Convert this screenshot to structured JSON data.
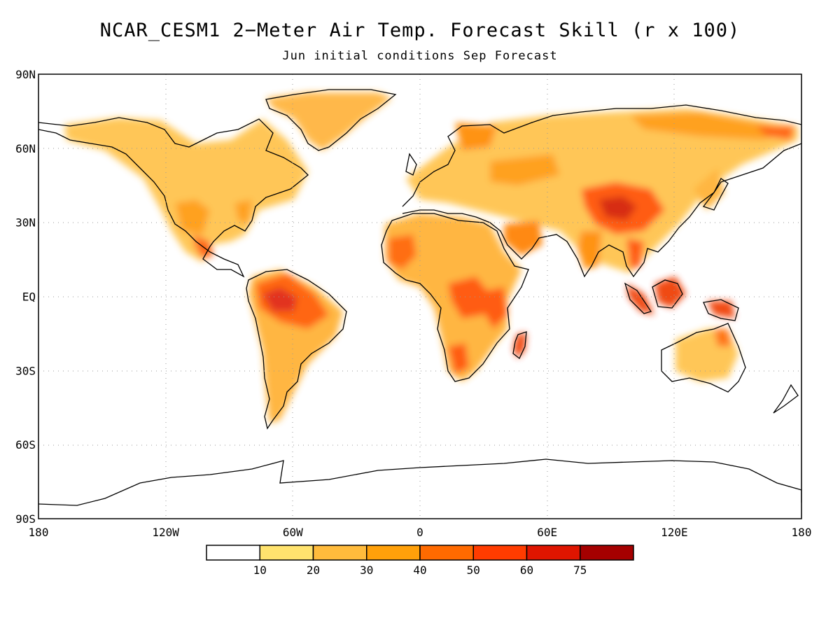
{
  "title": "NCAR_CESM1 2−Meter Air Temp. Forecast Skill (r x 100)",
  "subtitle": "Jun initial conditions  Sep Forecast",
  "map": {
    "projection": "equirectangular",
    "lon_range": [
      -180,
      180
    ],
    "lat_range": [
      -90,
      90
    ],
    "grid": "dotted",
    "lat_labels": [
      "90N",
      "60N",
      "30N",
      "EQ",
      "30S",
      "60S",
      "90S"
    ],
    "lon_labels": [
      "180",
      "120W",
      "60W",
      "0",
      "60E",
      "120E",
      "180"
    ],
    "coastline_color": "#000000"
  },
  "colorbar": {
    "tick_labels": [
      "10",
      "20",
      "30",
      "40",
      "50",
      "60",
      "75"
    ],
    "colors": [
      "#ffffff",
      "#ffe36e",
      "#ffbb3c",
      "#ffa00a",
      "#ff6a00",
      "#ff3c00",
      "#df1500",
      "#a50000"
    ]
  },
  "skill_regions": [
    {
      "region": "Amazon basin",
      "level": 5
    },
    {
      "region": "Sahel / West Africa",
      "level": 5
    },
    {
      "region": "East Africa",
      "level": 5
    },
    {
      "region": "Madagascar",
      "level": 5
    },
    {
      "region": "Tibetan Plateau",
      "level": 5
    },
    {
      "region": "Maritime Continent",
      "level": 6
    },
    {
      "region": "Central America",
      "level": 5
    },
    {
      "region": "Eastern Siberia",
      "level": 4
    },
    {
      "region": "Greenland",
      "level": 3
    }
  ]
}
